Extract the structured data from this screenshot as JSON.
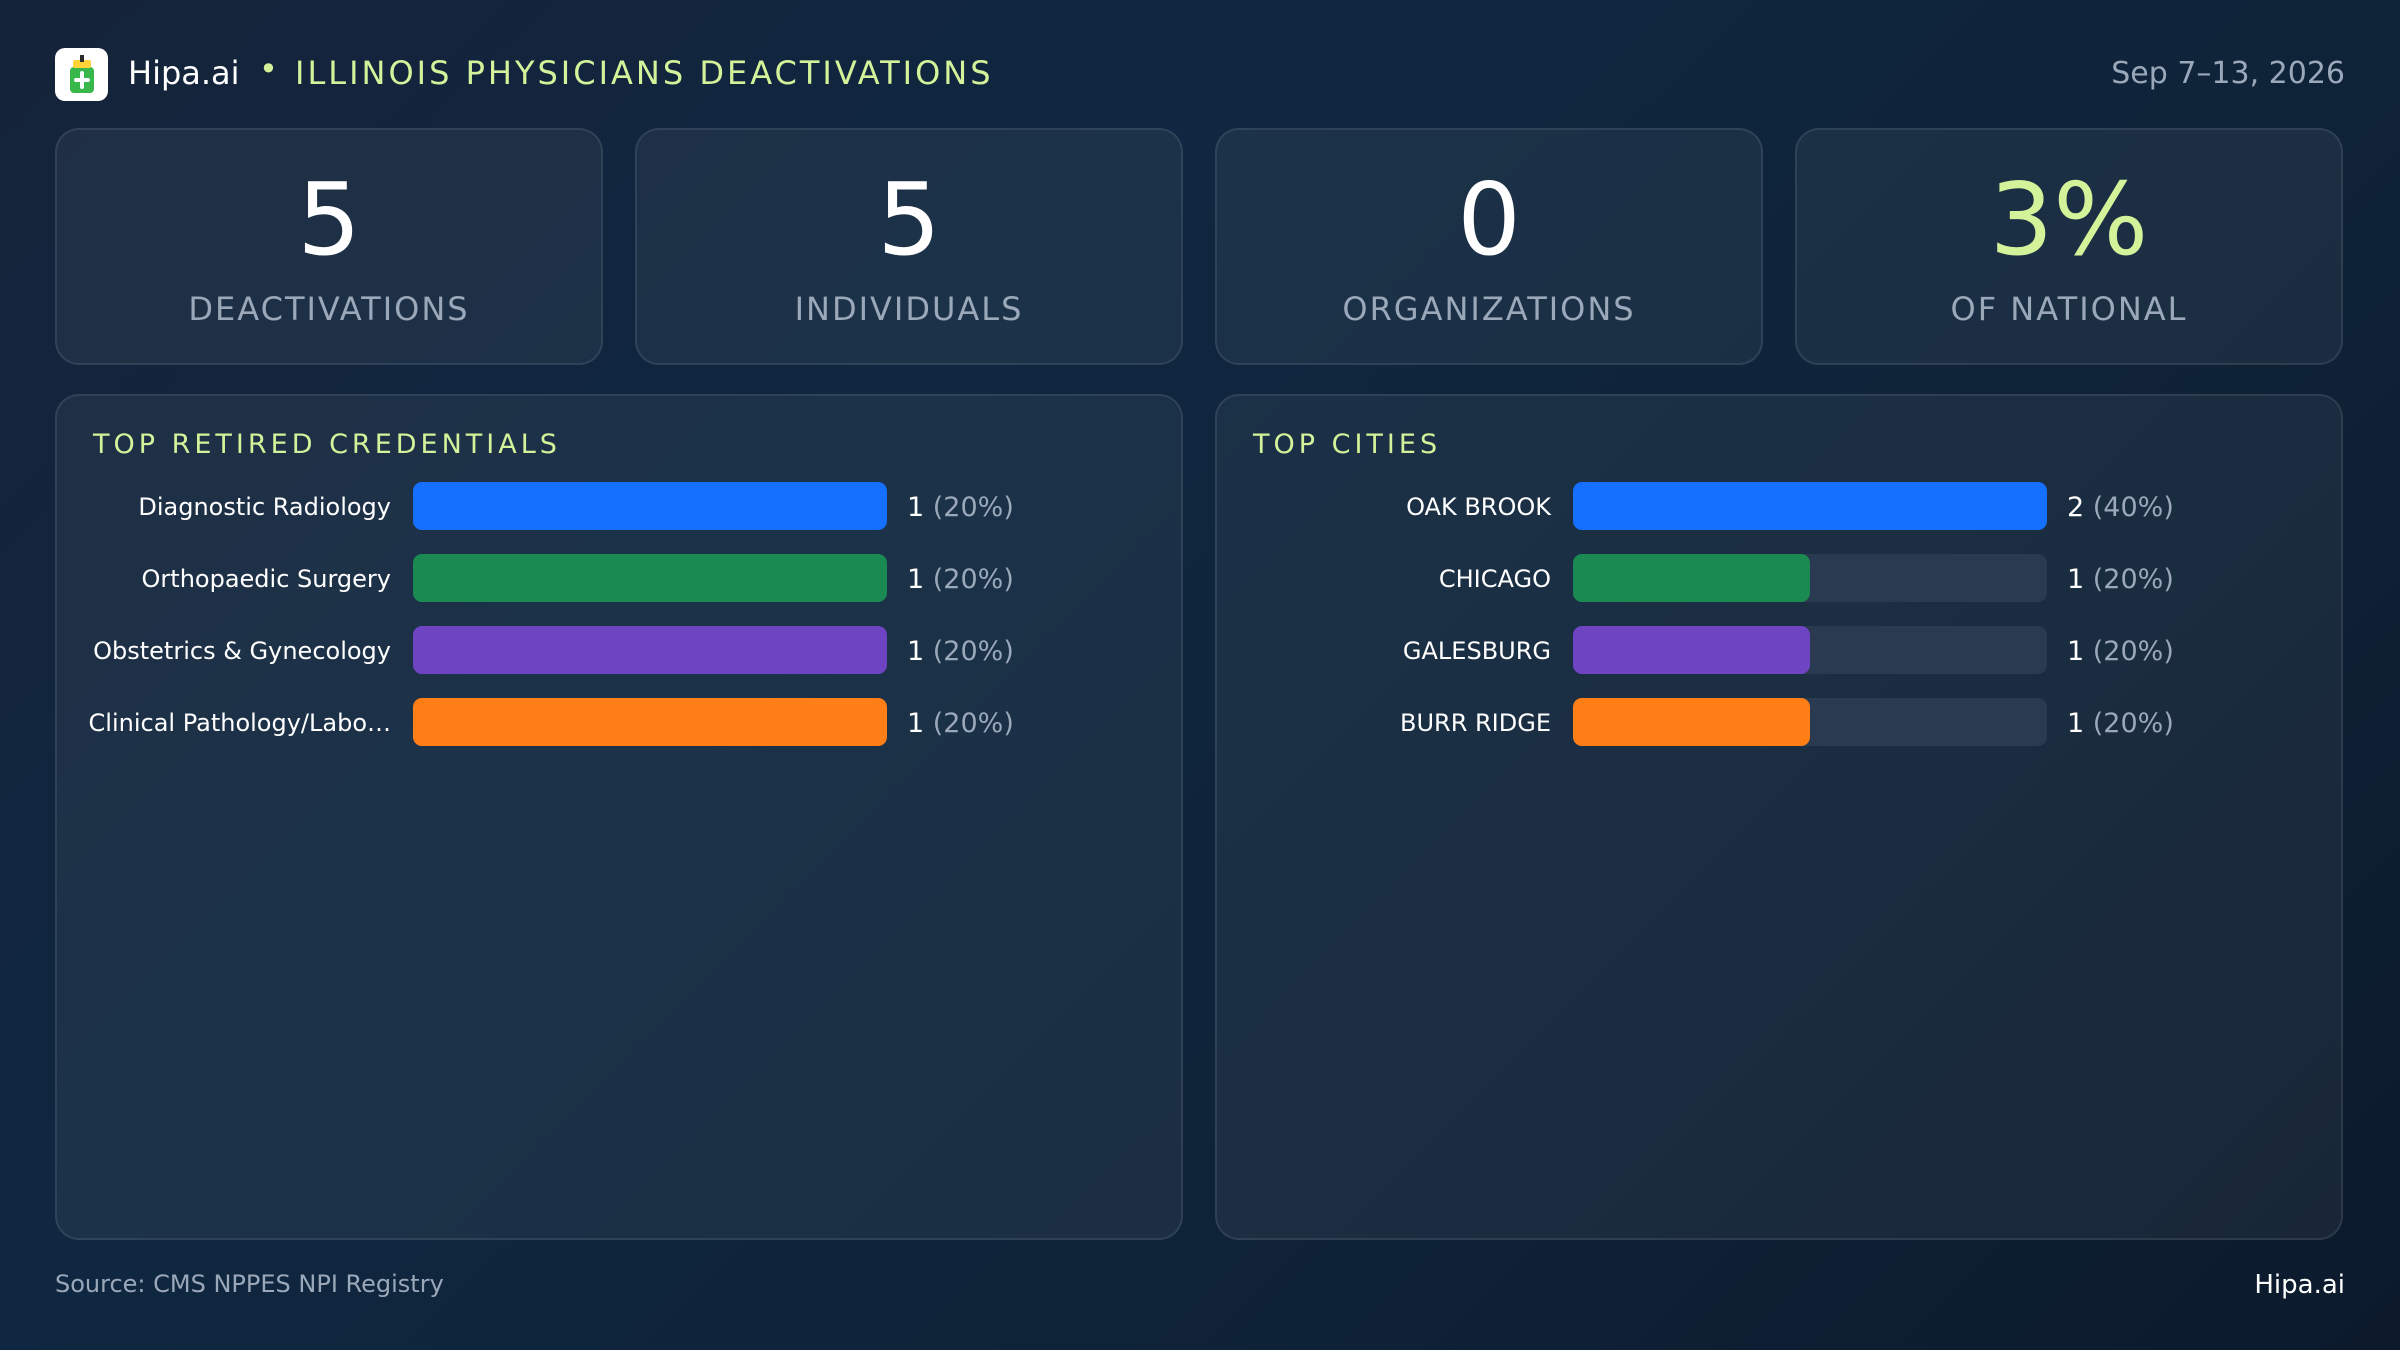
{
  "header": {
    "brand": "Hipa.ai",
    "separator": "•",
    "title": "ILLINOIS PHYSICIANS DEACTIVATIONS",
    "date": "Sep 7–13, 2026"
  },
  "stats": [
    {
      "value": "5",
      "label": "DEACTIVATIONS"
    },
    {
      "value": "5",
      "label": "INDIVIDUALS"
    },
    {
      "value": "0",
      "label": "ORGANIZATIONS"
    },
    {
      "value": "3%",
      "label": "OF NATIONAL"
    }
  ],
  "colors": {
    "accent": "#d4f29a",
    "series": [
      "#1570ff",
      "#1b8a52",
      "#6f44c2",
      "#ff7f16"
    ],
    "track": "#2a3a50"
  },
  "chart_data": [
    {
      "type": "bar",
      "orientation": "horizontal",
      "title": "TOP RETIRED CREDENTIALS",
      "categories": [
        "Diagnostic Radiology",
        "Orthopaedic Surgery",
        "Obstetrics & Gynecology",
        "Clinical Pathology/Labo…"
      ],
      "values": [
        1,
        1,
        1,
        1
      ],
      "value_labels": [
        "1",
        "1",
        "1",
        "1"
      ],
      "percent_labels": [
        "(20%)",
        "(20%)",
        "(20%)",
        "(20%)"
      ],
      "xlim": [
        0,
        1
      ]
    },
    {
      "type": "bar",
      "orientation": "horizontal",
      "title": "TOP CITIES",
      "categories": [
        "OAK BROOK",
        "CHICAGO",
        "GALESBURG",
        "BURR RIDGE"
      ],
      "values": [
        2,
        1,
        1,
        1
      ],
      "value_labels": [
        "2",
        "1",
        "1",
        "1"
      ],
      "percent_labels": [
        "(40%)",
        "(20%)",
        "(20%)",
        "(20%)"
      ],
      "xlim": [
        0,
        2
      ]
    }
  ],
  "footer": {
    "source": "Source: CMS NPPES NPI Registry",
    "brand": "Hipa.ai"
  }
}
